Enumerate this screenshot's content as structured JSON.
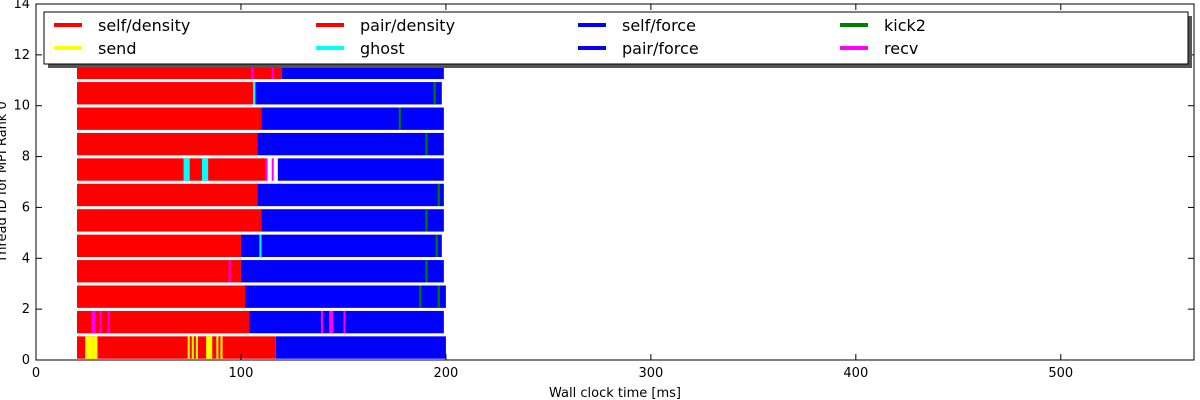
{
  "chart_data": {
    "type": "bar",
    "orientation": "horizontal-timeline",
    "title": "",
    "xlabel": "Wall clock time [ms]",
    "ylabel": "Thread ID for MPI Rank 0",
    "xlim": [
      0,
      565
    ],
    "ylim": [
      0,
      14
    ],
    "xticks": [
      0,
      100,
      200,
      300,
      400,
      500
    ],
    "yticks": [
      0,
      2,
      4,
      6,
      8,
      10,
      12,
      14
    ],
    "legend_position": "top",
    "legend": [
      {
        "name": "self/density",
        "color": "#ff0000"
      },
      {
        "name": "send",
        "color": "#ffff00"
      },
      {
        "name": "pair/density",
        "color": "#ff0000"
      },
      {
        "name": "ghost",
        "color": "#00ffff"
      },
      {
        "name": "self/force",
        "color": "#0000ff"
      },
      {
        "name": "pair/force",
        "color": "#0000ff"
      },
      {
        "name": "kick2",
        "color": "#008000"
      },
      {
        "name": "recv",
        "color": "#ff00ff"
      }
    ],
    "threads": [
      {
        "id": 0,
        "segments": [
          {
            "task": "self/density",
            "start": 20,
            "end": 117
          },
          {
            "task": "send",
            "start": 24,
            "end": 28
          },
          {
            "task": "send",
            "start": 28,
            "end": 30
          },
          {
            "task": "send",
            "start": 74,
            "end": 75
          },
          {
            "task": "send",
            "start": 76,
            "end": 77
          },
          {
            "task": "send",
            "start": 78,
            "end": 79
          },
          {
            "task": "send",
            "start": 83,
            "end": 86
          },
          {
            "task": "send",
            "start": 88,
            "end": 89
          },
          {
            "task": "send",
            "start": 90,
            "end": 91
          },
          {
            "task": "pair/force",
            "start": 117,
            "end": 200
          }
        ]
      },
      {
        "id": 1,
        "segments": [
          {
            "task": "pair/density",
            "start": 20,
            "end": 104
          },
          {
            "task": "recv",
            "start": 27,
            "end": 29
          },
          {
            "task": "recv",
            "start": 31,
            "end": 32
          },
          {
            "task": "recv",
            "start": 35,
            "end": 36
          },
          {
            "task": "pair/force",
            "start": 104,
            "end": 199
          },
          {
            "task": "recv",
            "start": 139,
            "end": 140
          },
          {
            "task": "recv",
            "start": 143,
            "end": 145
          },
          {
            "task": "recv",
            "start": 150,
            "end": 151
          }
        ]
      },
      {
        "id": 2,
        "segments": [
          {
            "task": "pair/density",
            "start": 20,
            "end": 102
          },
          {
            "task": "pair/force",
            "start": 102,
            "end": 200
          },
          {
            "task": "kick2",
            "start": 187,
            "end": 188
          },
          {
            "task": "kick2",
            "start": 196,
            "end": 197
          }
        ]
      },
      {
        "id": 3,
        "segments": [
          {
            "task": "pair/density",
            "start": 20,
            "end": 100
          },
          {
            "task": "recv",
            "start": 94,
            "end": 95
          },
          {
            "task": "pair/force",
            "start": 100,
            "end": 199
          },
          {
            "task": "kick2",
            "start": 190,
            "end": 191
          }
        ]
      },
      {
        "id": 4,
        "segments": [
          {
            "task": "pair/density",
            "start": 20,
            "end": 100
          },
          {
            "task": "pair/force",
            "start": 100,
            "end": 198
          },
          {
            "task": "ghost",
            "start": 109,
            "end": 110
          },
          {
            "task": "kick2",
            "start": 195,
            "end": 196
          }
        ]
      },
      {
        "id": 5,
        "segments": [
          {
            "task": "pair/density",
            "start": 20,
            "end": 110
          },
          {
            "task": "pair/force",
            "start": 110,
            "end": 199
          },
          {
            "task": "kick2",
            "start": 190,
            "end": 191
          }
        ]
      },
      {
        "id": 6,
        "segments": [
          {
            "task": "pair/density",
            "start": 20,
            "end": 108
          },
          {
            "task": "pair/force",
            "start": 108,
            "end": 199
          },
          {
            "task": "kick2",
            "start": 196,
            "end": 197
          }
        ]
      },
      {
        "id": 7,
        "segments": [
          {
            "task": "pair/density",
            "start": 20,
            "end": 112
          },
          {
            "task": "ghost",
            "start": 72,
            "end": 75
          },
          {
            "task": "ghost",
            "start": 81,
            "end": 84
          },
          {
            "task": "recv",
            "start": 112,
            "end": 113
          },
          {
            "task": "recv",
            "start": 115,
            "end": 116
          },
          {
            "task": "pair/force",
            "start": 118,
            "end": 199
          }
        ]
      },
      {
        "id": 8,
        "segments": [
          {
            "task": "pair/density",
            "start": 20,
            "end": 108
          },
          {
            "task": "pair/force",
            "start": 108,
            "end": 199
          },
          {
            "task": "kick2",
            "start": 190,
            "end": 191
          }
        ]
      },
      {
        "id": 9,
        "segments": [
          {
            "task": "pair/density",
            "start": 20,
            "end": 110
          },
          {
            "task": "pair/force",
            "start": 110,
            "end": 199
          },
          {
            "task": "kick2",
            "start": 177,
            "end": 178
          }
        ]
      },
      {
        "id": 10,
        "segments": [
          {
            "task": "pair/density",
            "start": 20,
            "end": 106
          },
          {
            "task": "ghost",
            "start": 106,
            "end": 107
          },
          {
            "task": "pair/force",
            "start": 107,
            "end": 198
          },
          {
            "task": "kick2",
            "start": 194,
            "end": 195
          }
        ]
      },
      {
        "id": 11,
        "segments": [
          {
            "task": "pair/density",
            "start": 20,
            "end": 120
          },
          {
            "task": "recv",
            "start": 105,
            "end": 106
          },
          {
            "task": "recv",
            "start": 115,
            "end": 116
          },
          {
            "task": "pair/force",
            "start": 120,
            "end": 199
          }
        ]
      }
    ]
  }
}
